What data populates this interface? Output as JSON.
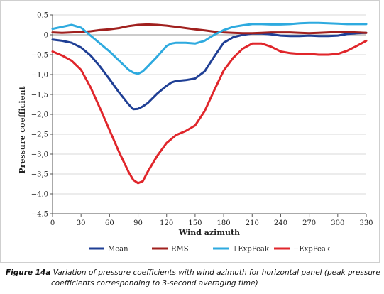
{
  "caption": {
    "label": "Figure 14a",
    "line1": "Variation of pressure coefficients with wind azimuth for horizontal panel (peak pressure",
    "line2": "coefficients corresponding to 3-second averaging time)"
  },
  "chart_data": {
    "type": "line",
    "xlabel": "Wind azimuth",
    "ylabel": "Pressure coefficient",
    "xlim": [
      0,
      330
    ],
    "ylim": [
      -4.5,
      0.5
    ],
    "x_ticks": [
      "0",
      "30",
      "60",
      "90",
      "120",
      "150",
      "180",
      "210",
      "240",
      "270",
      "300",
      "330"
    ],
    "y_ticks": [
      "0,5",
      "0",
      "−0,5",
      "−1,0",
      "−1,5",
      "−2,0",
      "−2,5",
      "−3,0",
      "−3,5",
      "−4,0",
      "−4,5"
    ],
    "y_tick_values": [
      0.5,
      0,
      -0.5,
      -1.0,
      -1.5,
      -2.0,
      -2.5,
      -3.0,
      -3.5,
      -4.0,
      -4.5
    ],
    "grid": "horizontal",
    "legend_position": "bottom",
    "series": [
      {
        "name": "Mean",
        "color": "#1f3f95",
        "x": [
          0,
          10,
          20,
          30,
          40,
          50,
          60,
          70,
          80,
          85,
          90,
          95,
          100,
          110,
          120,
          125,
          130,
          140,
          150,
          160,
          170,
          180,
          190,
          200,
          210,
          220,
          230,
          240,
          250,
          260,
          270,
          280,
          290,
          300,
          310,
          320,
          330
        ],
        "values": [
          -0.12,
          -0.15,
          -0.2,
          -0.32,
          -0.52,
          -0.8,
          -1.12,
          -1.45,
          -1.75,
          -1.87,
          -1.86,
          -1.8,
          -1.72,
          -1.48,
          -1.28,
          -1.2,
          -1.16,
          -1.14,
          -1.1,
          -0.92,
          -0.55,
          -0.2,
          -0.06,
          0.0,
          0.03,
          0.03,
          0.01,
          -0.02,
          -0.03,
          -0.03,
          -0.02,
          -0.03,
          -0.03,
          -0.02,
          0.02,
          0.04,
          0.05
        ]
      },
      {
        "name": "RMS",
        "color": "#a0201e",
        "x": [
          0,
          10,
          20,
          30,
          40,
          50,
          60,
          70,
          80,
          90,
          100,
          110,
          120,
          130,
          140,
          150,
          160,
          170,
          180,
          190,
          200,
          210,
          220,
          230,
          240,
          250,
          260,
          270,
          280,
          290,
          300,
          310,
          320,
          330
        ],
        "values": [
          0.06,
          0.05,
          0.06,
          0.07,
          0.09,
          0.12,
          0.14,
          0.17,
          0.22,
          0.25,
          0.26,
          0.25,
          0.23,
          0.2,
          0.17,
          0.14,
          0.11,
          0.08,
          0.06,
          0.05,
          0.04,
          0.04,
          0.05,
          0.06,
          0.06,
          0.06,
          0.05,
          0.04,
          0.05,
          0.06,
          0.07,
          0.07,
          0.06,
          0.05
        ]
      },
      {
        "name": "+ExpPeak",
        "color": "#2eaadf",
        "x": [
          0,
          10,
          20,
          30,
          40,
          50,
          60,
          70,
          80,
          85,
          90,
          95,
          100,
          110,
          120,
          125,
          130,
          140,
          150,
          160,
          170,
          180,
          190,
          200,
          210,
          220,
          230,
          240,
          250,
          260,
          270,
          280,
          290,
          300,
          310,
          320,
          330
        ],
        "values": [
          0.15,
          0.2,
          0.25,
          0.18,
          -0.02,
          -0.22,
          -0.42,
          -0.65,
          -0.88,
          -0.95,
          -0.98,
          -0.92,
          -0.8,
          -0.55,
          -0.28,
          -0.22,
          -0.2,
          -0.2,
          -0.22,
          -0.15,
          0.0,
          0.12,
          0.2,
          0.24,
          0.27,
          0.27,
          0.26,
          0.26,
          0.27,
          0.29,
          0.3,
          0.3,
          0.29,
          0.28,
          0.27,
          0.27,
          0.27
        ]
      },
      {
        "name": "−ExpPeak",
        "color": "#e0262b",
        "x": [
          0,
          10,
          20,
          30,
          40,
          50,
          60,
          70,
          80,
          85,
          90,
          95,
          100,
          110,
          120,
          130,
          140,
          150,
          160,
          170,
          180,
          190,
          200,
          210,
          220,
          230,
          240,
          250,
          260,
          270,
          280,
          290,
          300,
          310,
          320,
          330
        ],
        "values": [
          -0.42,
          -0.52,
          -0.65,
          -0.88,
          -1.32,
          -1.85,
          -2.4,
          -2.95,
          -3.45,
          -3.65,
          -3.73,
          -3.68,
          -3.45,
          -3.05,
          -2.72,
          -2.52,
          -2.42,
          -2.28,
          -1.92,
          -1.4,
          -0.9,
          -0.58,
          -0.35,
          -0.22,
          -0.22,
          -0.3,
          -0.42,
          -0.46,
          -0.48,
          -0.48,
          -0.5,
          -0.5,
          -0.48,
          -0.4,
          -0.28,
          -0.15
        ]
      }
    ]
  }
}
